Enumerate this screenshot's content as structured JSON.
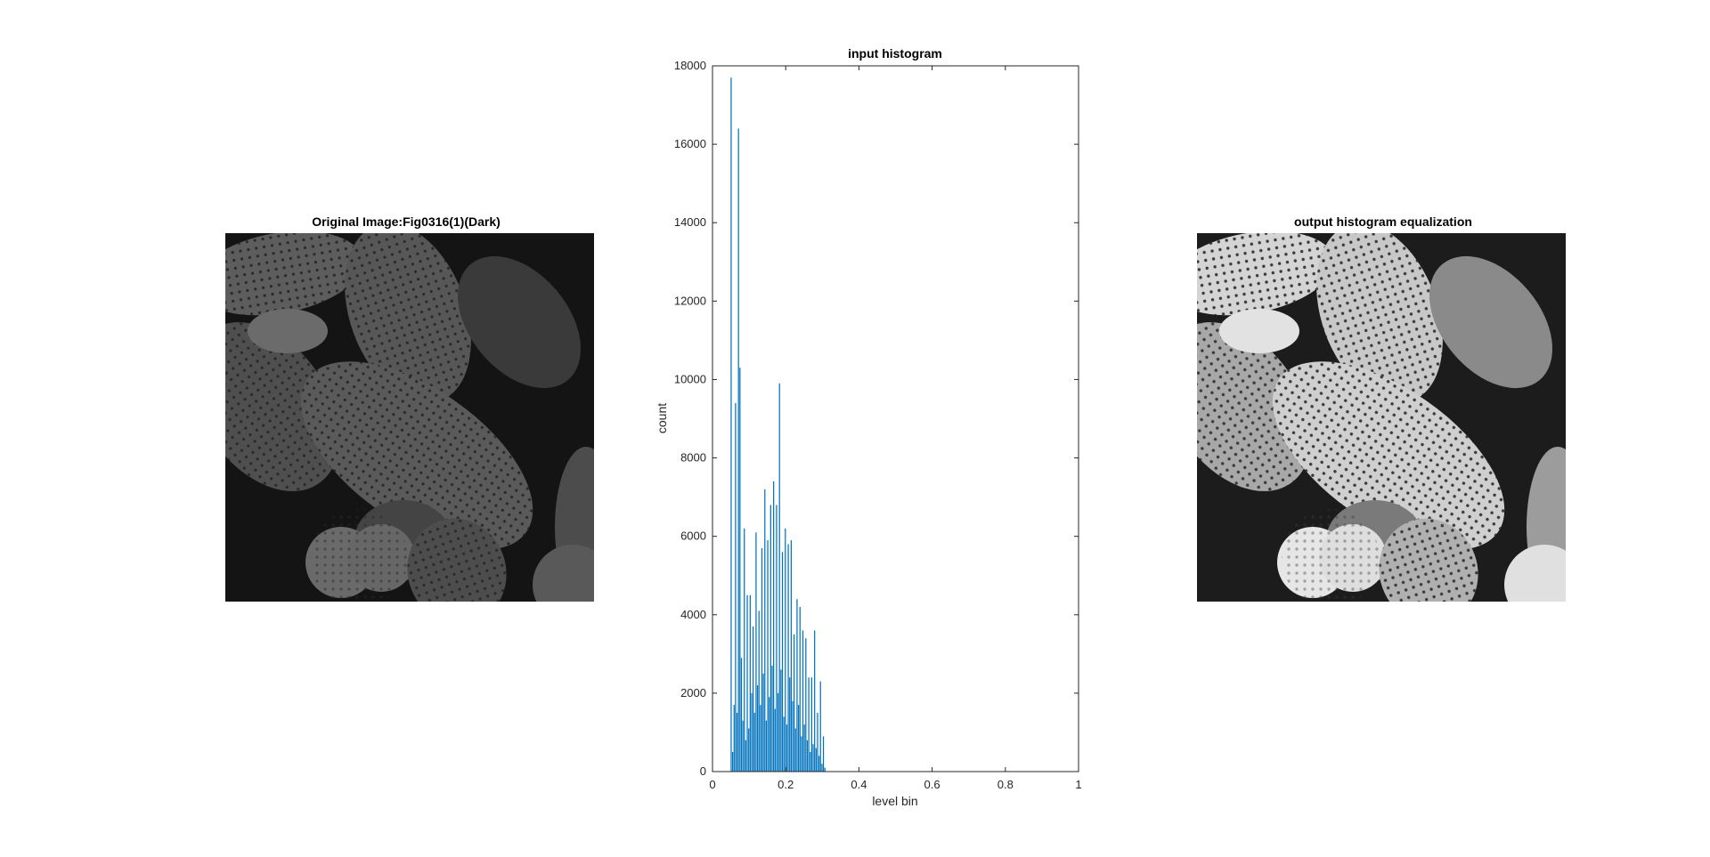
{
  "left_panel": {
    "title": "Original Image:Fig0316(1)(Dark)",
    "image_description_icon": "pollen-grains-image-dark"
  },
  "right_panel": {
    "title": "output histogram equalization",
    "image_description_icon": "pollen-grains-image-equalized"
  },
  "chart_data": {
    "type": "bar",
    "title": "input histogram",
    "xlabel": "level bin",
    "ylabel": "count",
    "xlim": [
      0,
      1
    ],
    "ylim": [
      0,
      18000
    ],
    "xticks": [
      "0",
      "0.2",
      "0.4",
      "0.6",
      "0.8",
      "1"
    ],
    "xtick_values": [
      0,
      0.2,
      0.4,
      0.6,
      0.8,
      1
    ],
    "yticks": [
      "0",
      "2000",
      "4000",
      "6000",
      "8000",
      "10000",
      "12000",
      "14000",
      "16000",
      "18000"
    ],
    "ytick_values": [
      0,
      2000,
      4000,
      6000,
      8000,
      10000,
      12000,
      14000,
      16000,
      18000
    ],
    "grid": false,
    "bar_color": "#0072BD",
    "x": [
      0.051,
      0.055,
      0.059,
      0.063,
      0.067,
      0.071,
      0.075,
      0.079,
      0.083,
      0.087,
      0.091,
      0.095,
      0.099,
      0.103,
      0.107,
      0.111,
      0.115,
      0.119,
      0.123,
      0.127,
      0.131,
      0.135,
      0.139,
      0.143,
      0.147,
      0.151,
      0.155,
      0.159,
      0.163,
      0.167,
      0.171,
      0.175,
      0.179,
      0.183,
      0.187,
      0.191,
      0.195,
      0.199,
      0.203,
      0.207,
      0.211,
      0.215,
      0.219,
      0.223,
      0.227,
      0.231,
      0.235,
      0.239,
      0.243,
      0.247,
      0.251,
      0.255,
      0.259,
      0.263,
      0.267,
      0.271,
      0.275,
      0.279,
      0.283,
      0.287,
      0.291,
      0.295,
      0.299,
      0.303,
      0.307
    ],
    "values": [
      17700,
      500,
      1700,
      9400,
      1500,
      16400,
      10300,
      2900,
      1300,
      6200,
      800,
      4500,
      1100,
      4500,
      2000,
      3700,
      1500,
      6100,
      2200,
      4100,
      1700,
      5700,
      2500,
      7200,
      1300,
      5900,
      1900,
      6800,
      2700,
      7400,
      1600,
      6800,
      2000,
      9900,
      2600,
      5600,
      1400,
      6200,
      1200,
      5800,
      2400,
      5900,
      1800,
      3500,
      1100,
      4400,
      1700,
      4200,
      900,
      3600,
      1200,
      3400,
      800,
      2400,
      500,
      2400,
      700,
      3600,
      600,
      1500,
      400,
      2300,
      200,
      900,
      100
    ]
  }
}
